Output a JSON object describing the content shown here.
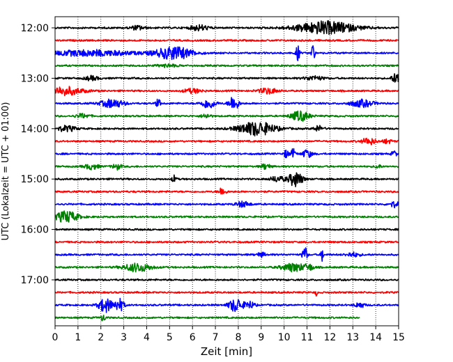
{
  "chart_data": {
    "type": "line",
    "title": "",
    "xlabel": "Zeit  [min]",
    "ylabel": "UTC (Lokalzeit = UTC + 01:00)",
    "xlim": [
      0,
      15
    ],
    "x_ticks": [
      "0",
      "1",
      "2",
      "3",
      "4",
      "5",
      "6",
      "7",
      "8",
      "9",
      "10",
      "11",
      "12",
      "13",
      "14",
      "15"
    ],
    "y_ticks": [
      "12:00",
      "13:00",
      "14:00",
      "15:00",
      "16:00",
      "17:00"
    ],
    "grid": "vertical dotted",
    "trace_minutes_per_line": 15,
    "colors": [
      "#000000",
      "#ff0000",
      "#0000ff",
      "#008000"
    ],
    "traces": [
      {
        "start": "12:00",
        "color": "#000000",
        "end_min": 15,
        "events": [
          [
            11.8,
            1.3,
            9
          ],
          [
            6.3,
            0.4,
            4
          ],
          [
            3.6,
            0.3,
            3
          ]
        ]
      },
      {
        "start": "12:15",
        "color": "#ff0000",
        "end_min": 15,
        "events": []
      },
      {
        "start": "12:30",
        "color": "#0000ff",
        "end_min": 15,
        "events": [
          [
            5.2,
            0.8,
            9
          ],
          [
            10.6,
            0.08,
            12
          ],
          [
            11.25,
            0.08,
            12
          ],
          [
            1.5,
            2.0,
            4
          ]
        ]
      },
      {
        "start": "12:45",
        "color": "#008000",
        "end_min": 15,
        "events": [
          [
            4.9,
            0.4,
            2
          ]
        ]
      },
      {
        "start": "13:00",
        "color": "#000000",
        "end_min": 15,
        "events": [
          [
            14.9,
            0.2,
            7
          ],
          [
            1.6,
            0.3,
            3
          ],
          [
            11.3,
            0.4,
            3
          ]
        ]
      },
      {
        "start": "13:15",
        "color": "#ff0000",
        "end_min": 15,
        "events": [
          [
            0.4,
            0.8,
            6
          ],
          [
            9.3,
            0.4,
            4
          ],
          [
            6.0,
            0.4,
            3
          ]
        ]
      },
      {
        "start": "13:30",
        "color": "#0000ff",
        "end_min": 15,
        "events": [
          [
            2.5,
            0.5,
            6
          ],
          [
            4.5,
            0.1,
            6
          ],
          [
            6.7,
            0.3,
            7
          ],
          [
            7.8,
            0.2,
            11
          ],
          [
            13.4,
            0.5,
            5
          ]
        ]
      },
      {
        "start": "13:45",
        "color": "#008000",
        "end_min": 15,
        "events": [
          [
            10.7,
            0.4,
            7
          ],
          [
            6.6,
            0.2,
            3
          ],
          [
            1.2,
            0.3,
            3
          ]
        ]
      },
      {
        "start": "14:00",
        "color": "#000000",
        "end_min": 15,
        "events": [
          [
            8.8,
            0.8,
            10
          ],
          [
            0.5,
            0.4,
            4
          ],
          [
            11.5,
            0.2,
            4
          ]
        ]
      },
      {
        "start": "14:15",
        "color": "#ff0000",
        "end_min": 15,
        "events": [
          [
            13.7,
            0.3,
            5
          ],
          [
            14.5,
            0.2,
            3
          ]
        ]
      },
      {
        "start": "14:30",
        "color": "#0000ff",
        "end_min": 15,
        "events": [
          [
            10.1,
            0.1,
            6
          ],
          [
            10.4,
            0.1,
            7
          ],
          [
            11.0,
            0.2,
            6
          ],
          [
            14.8,
            0.1,
            5
          ]
        ]
      },
      {
        "start": "14:45",
        "color": "#008000",
        "end_min": 15,
        "events": [
          [
            1.6,
            0.3,
            4
          ],
          [
            2.7,
            0.2,
            4
          ],
          [
            9.2,
            0.2,
            4
          ],
          [
            14.1,
            0.1,
            4
          ]
        ]
      },
      {
        "start": "15:00",
        "color": "#000000",
        "end_min": 15,
        "events": [
          [
            10.5,
            0.3,
            11
          ],
          [
            5.2,
            0.1,
            5
          ],
          [
            9.7,
            0.3,
            4
          ]
        ]
      },
      {
        "start": "15:15",
        "color": "#ff0000",
        "end_min": 15,
        "events": [
          [
            7.3,
            0.15,
            6
          ]
        ]
      },
      {
        "start": "15:30",
        "color": "#0000ff",
        "end_min": 15,
        "events": [
          [
            8.2,
            0.3,
            4
          ],
          [
            14.8,
            0.2,
            4
          ]
        ]
      },
      {
        "start": "15:45",
        "color": "#008000",
        "end_min": 15,
        "events": [
          [
            0.5,
            0.5,
            8
          ]
        ]
      },
      {
        "start": "16:00",
        "color": "#000000",
        "end_min": 15,
        "events": []
      },
      {
        "start": "16:15",
        "color": "#ff0000",
        "end_min": 15,
        "events": []
      },
      {
        "start": "16:30",
        "color": "#0000ff",
        "end_min": 15,
        "events": [
          [
            10.9,
            0.1,
            12
          ],
          [
            11.65,
            0.05,
            13
          ],
          [
            9.0,
            0.2,
            3
          ],
          [
            13.0,
            0.3,
            3
          ]
        ]
      },
      {
        "start": "16:45",
        "color": "#008000",
        "end_min": 15,
        "events": [
          [
            10.4,
            0.5,
            6
          ],
          [
            3.6,
            0.6,
            6
          ],
          [
            11.1,
            0.2,
            4
          ]
        ]
      },
      {
        "start": "17:00",
        "color": "#000000",
        "end_min": 15,
        "events": []
      },
      {
        "start": "17:15",
        "color": "#ff0000",
        "end_min": 15,
        "events": [
          [
            11.4,
            0.05,
            4
          ]
        ]
      },
      {
        "start": "17:30",
        "color": "#0000ff",
        "end_min": 15,
        "events": [
          [
            2.2,
            0.3,
            10
          ],
          [
            2.8,
            0.2,
            9
          ],
          [
            7.9,
            0.3,
            10
          ],
          [
            8.5,
            0.2,
            5
          ],
          [
            13.3,
            0.2,
            4
          ]
        ]
      },
      {
        "start": "17:45",
        "color": "#008000",
        "end_min": 13.3,
        "events": [
          [
            2.1,
            0.1,
            5
          ]
        ]
      }
    ]
  }
}
